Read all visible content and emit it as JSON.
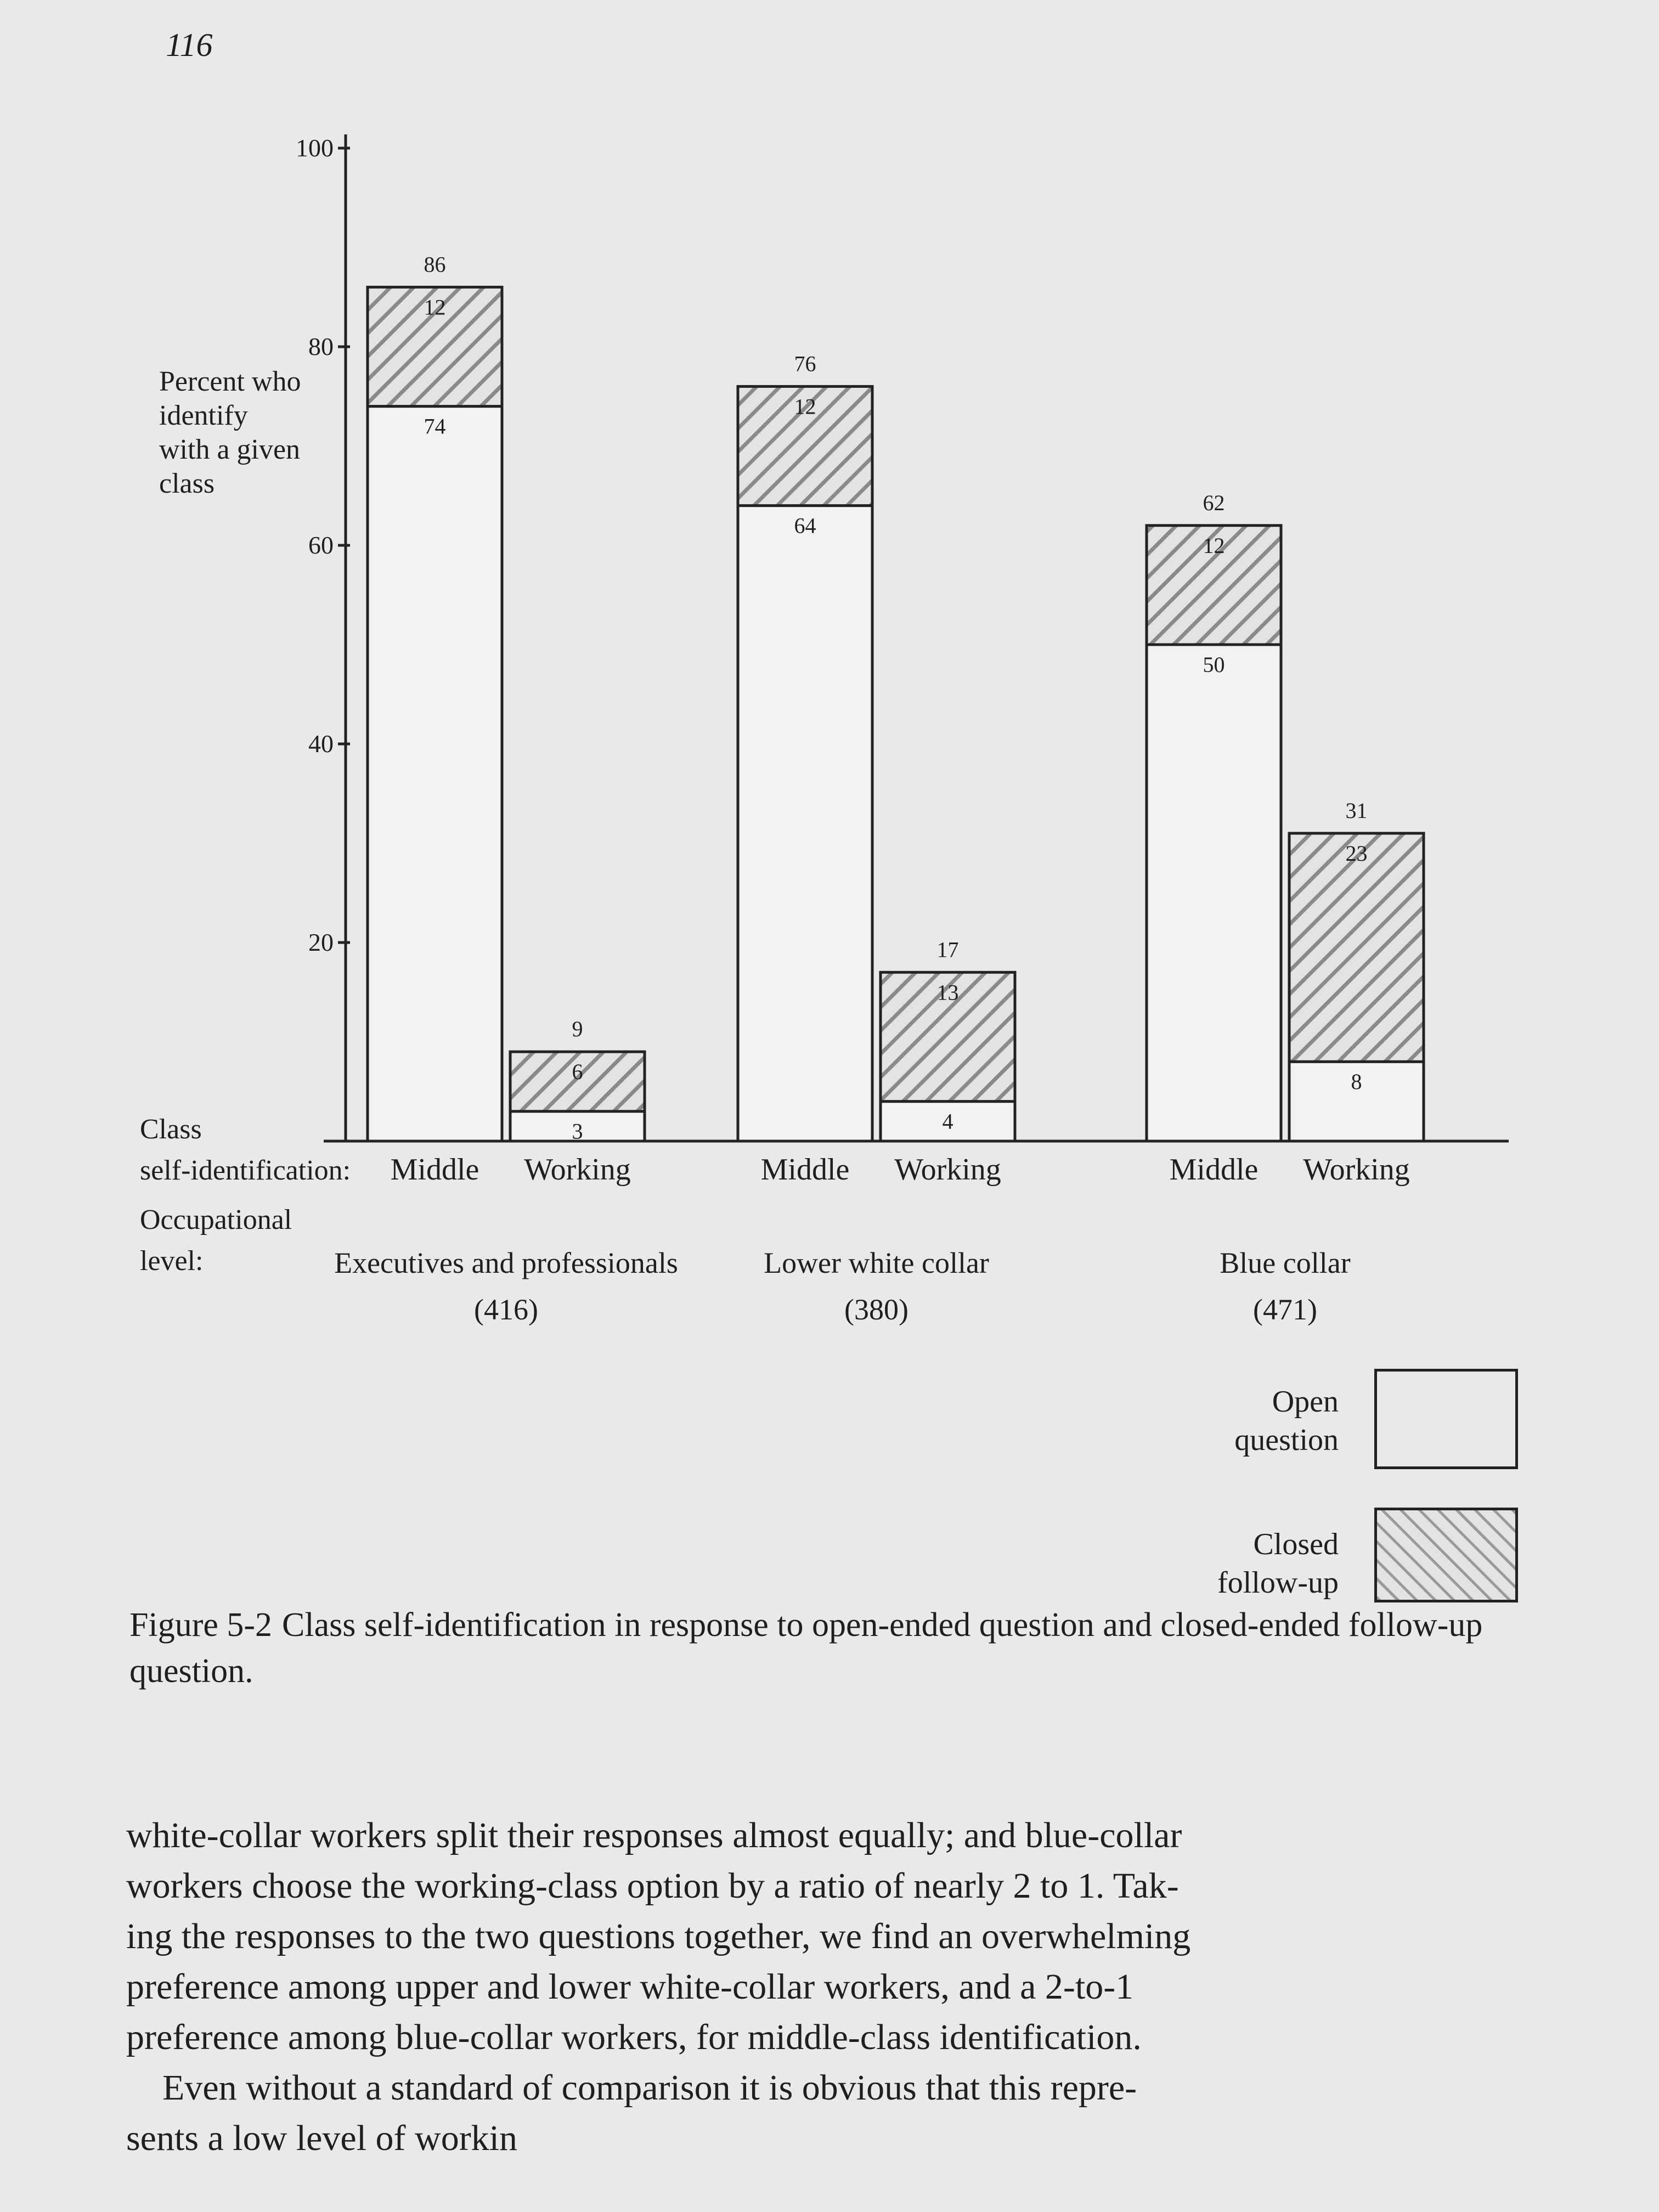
{
  "page_number": "116",
  "chart_data": {
    "type": "bar",
    "subtype": "stacked",
    "ylabel_lines": [
      "Percent who",
      "identify",
      "with a given",
      "class"
    ],
    "yticks": [
      20,
      40,
      60,
      80,
      100
    ],
    "ylim": [
      0,
      100
    ],
    "row_label_class": [
      "Class",
      "self-identification:"
    ],
    "row_label_occupation": [
      "Occupational",
      "level:"
    ],
    "groups": [
      {
        "label": "Executives and professionals",
        "n": "(416)",
        "bars": [
          {
            "category": "Middle",
            "open": 74,
            "closed": 12,
            "total": 86
          },
          {
            "category": "Working",
            "open": 3,
            "closed": 6,
            "total": 9
          }
        ]
      },
      {
        "label": "Lower white collar",
        "n": "(380)",
        "bars": [
          {
            "category": "Middle",
            "open": 64,
            "closed": 12,
            "total": 76
          },
          {
            "category": "Working",
            "open": 4,
            "closed": 13,
            "total": 17
          }
        ]
      },
      {
        "label": "Blue collar",
        "n": "(471)",
        "bars": [
          {
            "category": "Middle",
            "open": 50,
            "closed": 12,
            "total": 62
          },
          {
            "category": "Working",
            "open": 8,
            "closed": 23,
            "total": 31
          }
        ]
      }
    ],
    "legend": [
      {
        "label_lines": [
          "Open",
          "question"
        ],
        "style": "open"
      },
      {
        "label_lines": [
          "Closed",
          "follow-up"
        ],
        "style": "hatched"
      }
    ],
    "legend_position": "bottom-right",
    "grid": false
  },
  "caption": {
    "lead": "Figure 5-2",
    "text": "Class self-identification in response to open-ended question and closed-ended follow-up question."
  },
  "body_text": {
    "lines": [
      "white-collar workers split their responses almost equally; and blue-collar",
      "workers choose the working-class option by a ratio of nearly 2 to 1. Tak-",
      "ing the responses to the two questions together, we find an overwhelming",
      "preference among upper and lower white-collar workers, and a 2-to-1",
      "preference among blue-collar workers, for middle-class identification.",
      "Even without a standard of comparison it is obvious that this repre-",
      "sents a low level of workin"
    ]
  }
}
